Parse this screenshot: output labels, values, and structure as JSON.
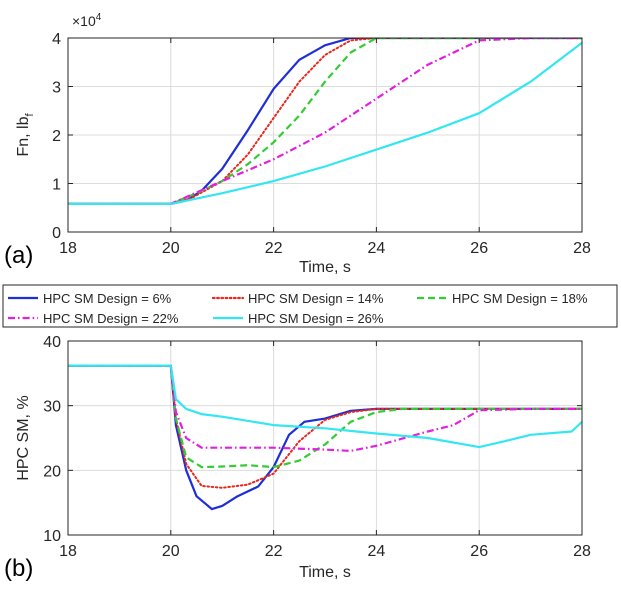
{
  "panel_labels": [
    "(a)",
    "(b)"
  ],
  "legend": {
    "entries": [
      {
        "label": "HPC SM Design = 6%",
        "color": "#1f2ed6",
        "dash": "solid"
      },
      {
        "label": "HPC SM Design = 14%",
        "color": "#e8281e",
        "dash": "dotted"
      },
      {
        "label": "HPC SM Design = 18%",
        "color": "#33cc33",
        "dash": "dashed"
      },
      {
        "label": "HPC SM Design = 22%",
        "color": "#e020e0",
        "dash": "dashdot"
      },
      {
        "label": "HPC SM Design = 26%",
        "color": "#33e6f2",
        "dash": "solid"
      }
    ]
  },
  "chart_data": [
    {
      "type": "line",
      "panel": "(a)",
      "xlabel": "Time, s",
      "ylabel": "Fn, lb_f",
      "ylabel_main": "Fn, lb",
      "ylabel_sub": "f",
      "exponent_label": "×10",
      "exponent_power": "4",
      "xlim": [
        18,
        28
      ],
      "ylim": [
        0,
        4
      ],
      "xticks": [
        "18",
        "20",
        "22",
        "24",
        "26",
        "28"
      ],
      "yticks": [
        "0",
        "1",
        "2",
        "3",
        "4"
      ],
      "grid": true,
      "series": [
        {
          "name": "HPC SM Design = 6%",
          "color": "#1f2ed6",
          "dash": "solid",
          "x": [
            18,
            20,
            20.3,
            20.6,
            21,
            21.5,
            22,
            22.5,
            23,
            23.5,
            24,
            28
          ],
          "y": [
            0.58,
            0.58,
            0.65,
            0.85,
            1.3,
            2.1,
            2.95,
            3.55,
            3.85,
            4.0,
            4.0,
            4.0
          ]
        },
        {
          "name": "HPC SM Design = 14%",
          "color": "#e8281e",
          "dash": "dotted",
          "x": [
            18,
            20,
            20.4,
            21,
            21.5,
            22,
            22.5,
            23,
            23.5,
            24,
            28
          ],
          "y": [
            0.58,
            0.58,
            0.7,
            1.05,
            1.6,
            2.35,
            3.1,
            3.65,
            3.95,
            4.0,
            4.0
          ]
        },
        {
          "name": "HPC SM Design = 18%",
          "color": "#33cc33",
          "dash": "dashed",
          "x": [
            18,
            20,
            20.5,
            21,
            21.5,
            22,
            22.5,
            23,
            23.5,
            24,
            28
          ],
          "y": [
            0.58,
            0.58,
            0.8,
            1.05,
            1.4,
            1.85,
            2.4,
            3.1,
            3.7,
            4.0,
            4.0
          ]
        },
        {
          "name": "HPC SM Design = 22%",
          "color": "#e020e0",
          "dash": "dashdot",
          "x": [
            18,
            20,
            21,
            22,
            23,
            24,
            25,
            26,
            27,
            28
          ],
          "y": [
            0.58,
            0.58,
            1.05,
            1.5,
            2.05,
            2.75,
            3.45,
            3.95,
            4.0,
            4.0
          ]
        },
        {
          "name": "HPC SM Design = 26%",
          "color": "#33e6f2",
          "dash": "solid",
          "x": [
            18,
            20,
            21,
            22,
            23,
            24,
            25,
            26,
            27,
            28
          ],
          "y": [
            0.58,
            0.58,
            0.8,
            1.05,
            1.35,
            1.7,
            2.05,
            2.45,
            3.1,
            3.9
          ]
        }
      ]
    },
    {
      "type": "line",
      "panel": "(b)",
      "xlabel": "Time, s",
      "ylabel": "HPC SM, %",
      "xlim": [
        18,
        28
      ],
      "ylim": [
        10,
        40
      ],
      "xticks": [
        "18",
        "20",
        "22",
        "24",
        "26",
        "28"
      ],
      "yticks": [
        "10",
        "20",
        "30",
        "40"
      ],
      "grid": true,
      "series": [
        {
          "name": "HPC SM Design = 6%",
          "color": "#1f2ed6",
          "dash": "solid",
          "x": [
            18,
            20,
            20.1,
            20.3,
            20.5,
            20.8,
            21,
            21.3,
            21.7,
            22,
            22.3,
            22.6,
            23,
            23.5,
            24,
            28
          ],
          "y": [
            36.2,
            36.2,
            27,
            20,
            16,
            14,
            14.5,
            16,
            17.5,
            20.5,
            25.5,
            27.5,
            28,
            29.2,
            29.5,
            29.5
          ]
        },
        {
          "name": "HPC SM Design = 14%",
          "color": "#e8281e",
          "dash": "dotted",
          "x": [
            18,
            20,
            20.1,
            20.3,
            20.6,
            21,
            21.5,
            22,
            22.5,
            23,
            23.5,
            24,
            28
          ],
          "y": [
            36.2,
            36.2,
            28,
            21,
            17.6,
            17.3,
            17.8,
            19.5,
            24.5,
            27.8,
            29,
            29.5,
            29.5
          ]
        },
        {
          "name": "HPC SM Design = 18%",
          "color": "#33cc33",
          "dash": "dashed",
          "x": [
            18,
            20,
            20.1,
            20.3,
            20.6,
            21,
            21.5,
            22,
            22.5,
            23,
            23.5,
            24,
            24.5,
            28
          ],
          "y": [
            36.2,
            36.2,
            28,
            22,
            20.5,
            20.6,
            20.8,
            20.5,
            21.5,
            24,
            27.5,
            29,
            29.5,
            29.5
          ]
        },
        {
          "name": "HPC SM Design = 22%",
          "color": "#e020e0",
          "dash": "dashdot",
          "x": [
            18,
            20,
            20.1,
            20.3,
            20.6,
            21,
            22,
            23,
            23.5,
            24,
            25,
            25.5,
            26,
            27,
            28
          ],
          "y": [
            36.2,
            36.2,
            29,
            25,
            23.5,
            23.5,
            23.5,
            23.2,
            23,
            23.8,
            26,
            27,
            29.3,
            29.5,
            29.5
          ]
        },
        {
          "name": "HPC SM Design = 26%",
          "color": "#33e6f2",
          "dash": "solid",
          "x": [
            18,
            20,
            20.1,
            20.3,
            20.6,
            21,
            22,
            23,
            24,
            25,
            26,
            26.5,
            27,
            27.8,
            28
          ],
          "y": [
            36.2,
            36.2,
            31,
            29.5,
            28.7,
            28.3,
            27,
            26.5,
            25.7,
            25,
            23.6,
            24.5,
            25.5,
            26,
            27.5
          ]
        }
      ]
    }
  ]
}
